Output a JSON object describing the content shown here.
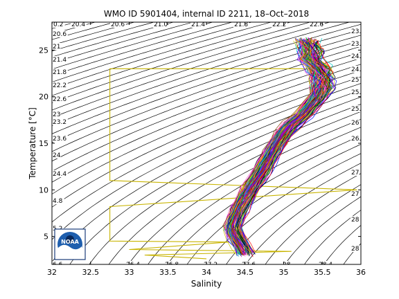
{
  "chart_data": {
    "type": "line",
    "title": "WMO ID 5901404, internal ID 2211, 18–Oct–2018",
    "xlabel": "Salinity",
    "ylabel": "Temperature [°C]",
    "xlim": [
      32,
      36
    ],
    "ylim": [
      2,
      28
    ],
    "xticks": [
      "32",
      "32.5",
      "33",
      "33.5",
      "34",
      "34.5",
      "35",
      "35.5",
      "36"
    ],
    "xtick_values": [
      32,
      32.5,
      33,
      33.5,
      34,
      34.5,
      35,
      35.5,
      36
    ],
    "yticks": [
      "5",
      "10",
      "15",
      "20",
      "25"
    ],
    "ytick_values": [
      5,
      10,
      15,
      20,
      25
    ],
    "grid": false,
    "density_contours": {
      "color": "#000000",
      "levels": [
        20.6,
        21,
        21.4,
        21.8,
        22.2,
        22.6,
        23,
        23.4,
        23.8,
        24.2,
        24.6,
        25,
        25.4,
        25.8,
        26.2,
        26.6,
        27,
        27.4,
        27.8,
        28.2,
        28.6
      ],
      "left_labels": [
        "20.6",
        "21",
        "21.4",
        "21.8",
        "22.2",
        "22.6",
        "23",
        "23.2",
        "23.6",
        "24",
        "24.4",
        "4.8",
        "5.2",
        "6.6"
      ],
      "top_labels": [
        "0.2",
        "20.4",
        "20.6",
        "21.0",
        "21.4",
        "21.8",
        "22.2",
        "22.6",
        "22.8"
      ],
      "bottom_labels": [
        "26.4",
        "26.8",
        "27.2",
        "27.6",
        "28",
        "28.4"
      ],
      "right_labels": [
        "23.4",
        "23.8",
        "24.2",
        "24.6",
        "25",
        "25.4",
        "25.8",
        "26",
        "26.6",
        "27",
        "27",
        "28",
        "28"
      ]
    },
    "series": [
      {
        "role": "historical climatology envelope",
        "color": "#c8b400",
        "points": [
          [
            35.4,
            23.0
          ],
          [
            32.75,
            23.0
          ],
          [
            32.75,
            11.0
          ],
          [
            35.95,
            10.0
          ],
          [
            32.75,
            8.2
          ],
          [
            32.75,
            4.5
          ],
          [
            34.3,
            4.4
          ],
          [
            33.0,
            3.6
          ],
          [
            35.1,
            3.4
          ],
          [
            33.2,
            3.0
          ],
          [
            34.0,
            2.6
          ]
        ]
      }
    ],
    "profile_bundle": {
      "role": "Argo float profiles (multi-colored lines)",
      "count": 120,
      "colors": [
        "#ff0000",
        "#00aa00",
        "#0000ff",
        "#00c8c8",
        "#c800c8",
        "#c8c800",
        "#000000",
        "#ff8000",
        "#8000ff",
        "#008080",
        "#804000",
        "#ff66cc"
      ],
      "mean_profile": [
        [
          35.3,
          26.0
        ],
        [
          35.35,
          25.0
        ],
        [
          35.35,
          24.0
        ],
        [
          35.45,
          23.0
        ],
        [
          35.5,
          22.0
        ],
        [
          35.5,
          21.0
        ],
        [
          35.45,
          20.0
        ],
        [
          35.35,
          19.0
        ],
        [
          35.25,
          18.0
        ],
        [
          35.1,
          17.0
        ],
        [
          35.0,
          16.0
        ],
        [
          34.92,
          15.0
        ],
        [
          34.85,
          14.0
        ],
        [
          34.78,
          13.0
        ],
        [
          34.72,
          12.0
        ],
        [
          34.64,
          11.0
        ],
        [
          34.56,
          10.0
        ],
        [
          34.5,
          9.0
        ],
        [
          34.43,
          8.0
        ],
        [
          34.38,
          7.0
        ],
        [
          34.34,
          6.0
        ],
        [
          34.38,
          5.0
        ],
        [
          34.45,
          4.0
        ],
        [
          34.5,
          3.2
        ]
      ]
    },
    "logo": {
      "text": "NOAA",
      "position": "bottom-left"
    }
  }
}
